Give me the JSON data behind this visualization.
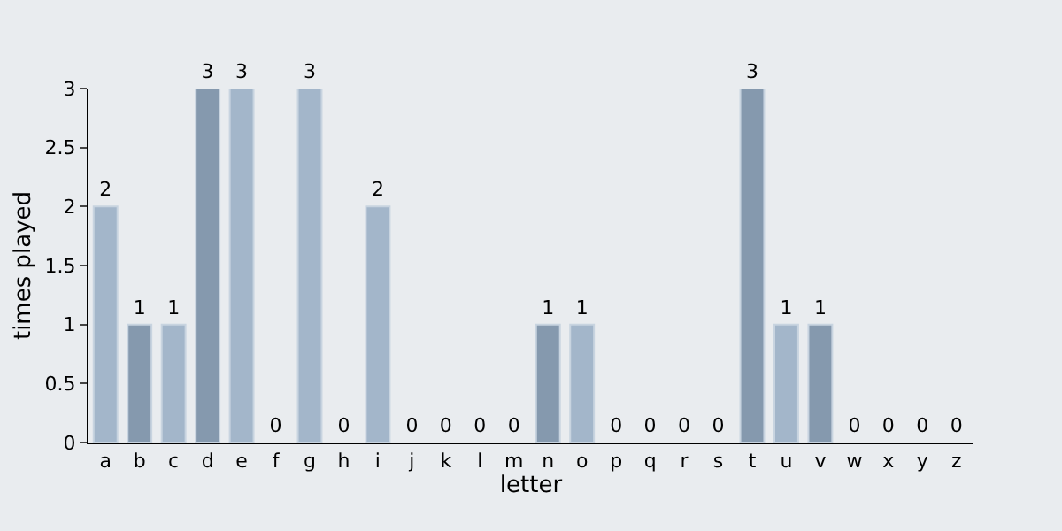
{
  "chart_data": {
    "type": "bar",
    "xlabel": "letter",
    "ylabel": "times played",
    "categories": [
      "a",
      "b",
      "c",
      "d",
      "e",
      "f",
      "g",
      "h",
      "i",
      "j",
      "k",
      "l",
      "m",
      "n",
      "o",
      "p",
      "q",
      "r",
      "s",
      "t",
      "u",
      "v",
      "w",
      "x",
      "y",
      "z"
    ],
    "values": [
      2,
      1,
      1,
      3,
      3,
      0,
      3,
      0,
      2,
      0,
      0,
      0,
      0,
      1,
      1,
      0,
      0,
      0,
      0,
      3,
      1,
      1,
      0,
      0,
      0,
      0
    ],
    "colors": [
      "#a3b6ca",
      "#8599ae",
      "#a3b6ca",
      "#8599ae",
      "#a3b6ca",
      "#a3b6ca",
      "#a3b6ca",
      "#a3b6ca",
      "#a3b6ca",
      "#a3b6ca",
      "#a3b6ca",
      "#a3b6ca",
      "#a3b6ca",
      "#8599ae",
      "#a3b6ca",
      "#a3b6ca",
      "#a3b6ca",
      "#a3b6ca",
      "#a3b6ca",
      "#8599ae",
      "#a3b6ca",
      "#8599ae",
      "#a3b6ca",
      "#a3b6ca",
      "#a3b6ca",
      "#a3b6ca"
    ],
    "ylim": [
      0,
      3
    ],
    "yticks": [
      0,
      0.5,
      1,
      1.5,
      2,
      2.5,
      3
    ],
    "data_labels": true,
    "grid": false
  }
}
